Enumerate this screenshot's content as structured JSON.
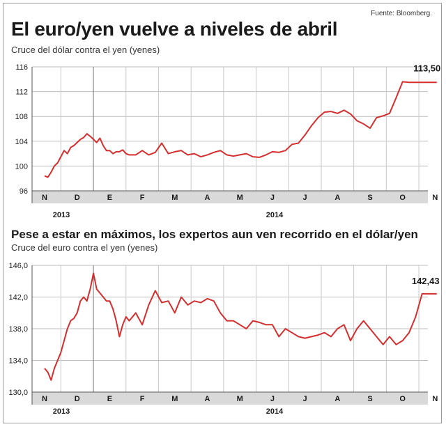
{
  "source": "Fuente: Bloomberg.",
  "chart_data": [
    {
      "type": "line",
      "title": "El euro/yen vuelve a niveles de abril",
      "subtitle": "Cruce del dólar contra el yen (yenes)",
      "ylim": [
        96,
        116
      ],
      "yticks": [
        "116",
        "112",
        "108",
        "104",
        "100",
        "96"
      ],
      "ytick_values": [
        116,
        112,
        108,
        104,
        100,
        96
      ],
      "months": [
        "N",
        "D",
        "E",
        "F",
        "M",
        "A",
        "M",
        "J",
        "J",
        "A",
        "S",
        "O",
        "N"
      ],
      "years": [
        "2013",
        "2014"
      ],
      "end_label": "113,50",
      "grid": true,
      "line_color": "#d42e2e",
      "series": [
        {
          "x": [
            0,
            0.1,
            0.2,
            0.3,
            0.4,
            0.5,
            0.6,
            0.7,
            0.8,
            0.9,
            1.0,
            1.1,
            1.2,
            1.3,
            1.4,
            1.5,
            1.6,
            1.7,
            1.8,
            1.9,
            2.0,
            2.1,
            2.2,
            2.3,
            2.4,
            2.5,
            2.6,
            2.8,
            3.0,
            3.2,
            3.4,
            3.6,
            3.8,
            4.0,
            4.2,
            4.4,
            4.6,
            4.8,
            5.0,
            5.2,
            5.4,
            5.6,
            5.8,
            6.0,
            6.2,
            6.4,
            6.6,
            6.8,
            7.0,
            7.2,
            7.4,
            7.6,
            7.8,
            8.0,
            8.2,
            8.4,
            8.6,
            8.8,
            9.0,
            9.2,
            9.4,
            9.6,
            9.8,
            10.0,
            10.2,
            10.4,
            10.6,
            10.8,
            11.0,
            11.2,
            11.4,
            11.6,
            11.8,
            11.9,
            12.0,
            12.05
          ],
          "values": [
            98.4,
            98.2,
            99.0,
            100.0,
            100.5,
            101.5,
            102.5,
            102.0,
            103.0,
            103.3,
            103.8,
            104.3,
            104.6,
            105.2,
            104.8,
            104.3,
            103.8,
            104.5,
            103.3,
            102.5,
            102.5,
            102.0,
            102.3,
            102.3,
            102.6,
            102.0,
            101.8,
            101.8,
            102.5,
            101.8,
            102.2,
            103.7,
            102.0,
            102.3,
            102.5,
            101.8,
            102.0,
            101.5,
            101.8,
            102.2,
            102.5,
            101.8,
            101.6,
            101.8,
            102.0,
            101.5,
            101.4,
            101.8,
            102.3,
            102.2,
            102.5,
            103.5,
            103.7,
            105.0,
            106.5,
            107.8,
            108.7,
            108.8,
            108.5,
            109.0,
            108.4,
            107.3,
            106.8,
            106.1,
            107.8,
            108.1,
            108.5,
            111.0,
            113.6,
            113.5,
            113.5,
            113.5,
            113.5,
            113.5,
            113.5,
            113.5
          ]
        }
      ]
    },
    {
      "type": "line",
      "title": "Pese a estar en máximos, los expertos aun ven recorrido en el dólar/yen",
      "subtitle": "Cruce del euro contra el yen (yenes)",
      "ylim": [
        130,
        146
      ],
      "yticks": [
        "146,0",
        "142,0",
        "138,0",
        "134,0",
        "130,0"
      ],
      "ytick_values": [
        146,
        142,
        138,
        134,
        130
      ],
      "months": [
        "N",
        "D",
        "E",
        "F",
        "M",
        "A",
        "M",
        "J",
        "J",
        "A",
        "S",
        "O",
        "N"
      ],
      "years": [
        "2013",
        "2014"
      ],
      "end_label": "142,43",
      "grid": true,
      "line_color": "#d42e2e",
      "series": [
        {
          "x": [
            0,
            0.1,
            0.2,
            0.3,
            0.4,
            0.5,
            0.6,
            0.7,
            0.8,
            0.9,
            1.0,
            1.1,
            1.2,
            1.3,
            1.4,
            1.5,
            1.6,
            1.7,
            1.8,
            1.9,
            2.0,
            2.1,
            2.2,
            2.3,
            2.4,
            2.5,
            2.6,
            2.8,
            3.0,
            3.2,
            3.4,
            3.6,
            3.8,
            4.0,
            4.2,
            4.4,
            4.6,
            4.8,
            5.0,
            5.2,
            5.4,
            5.6,
            5.8,
            6.0,
            6.2,
            6.4,
            6.6,
            6.8,
            7.0,
            7.2,
            7.4,
            7.6,
            7.8,
            8.0,
            8.2,
            8.4,
            8.6,
            8.8,
            9.0,
            9.2,
            9.4,
            9.6,
            9.8,
            10.0,
            10.2,
            10.4,
            10.6,
            10.8,
            11.0,
            11.2,
            11.4,
            11.6,
            11.8,
            11.9,
            12.0,
            12.05
          ],
          "values": [
            133.0,
            132.5,
            131.5,
            133.0,
            134.0,
            135.0,
            136.5,
            138.0,
            139.0,
            139.3,
            140.0,
            141.5,
            142.0,
            141.5,
            143.0,
            145.0,
            143.0,
            142.5,
            142.0,
            141.5,
            141.5,
            140.5,
            139.0,
            137.0,
            138.5,
            139.5,
            139.0,
            140.0,
            138.5,
            141.0,
            142.8,
            141.3,
            141.5,
            140.0,
            142.0,
            141.0,
            141.5,
            141.3,
            141.8,
            141.5,
            140.0,
            139.0,
            139.0,
            138.5,
            138.0,
            139.0,
            138.8,
            138.5,
            138.5,
            137.0,
            138.0,
            137.5,
            137.0,
            136.8,
            137.0,
            137.2,
            137.5,
            137.0,
            138.0,
            138.5,
            136.5,
            138.0,
            139.0,
            138.0,
            137.0,
            136.0,
            137.0,
            136.0,
            136.5,
            137.5,
            139.5,
            142.4,
            142.4,
            142.4,
            142.4,
            142.4
          ]
        }
      ]
    }
  ]
}
